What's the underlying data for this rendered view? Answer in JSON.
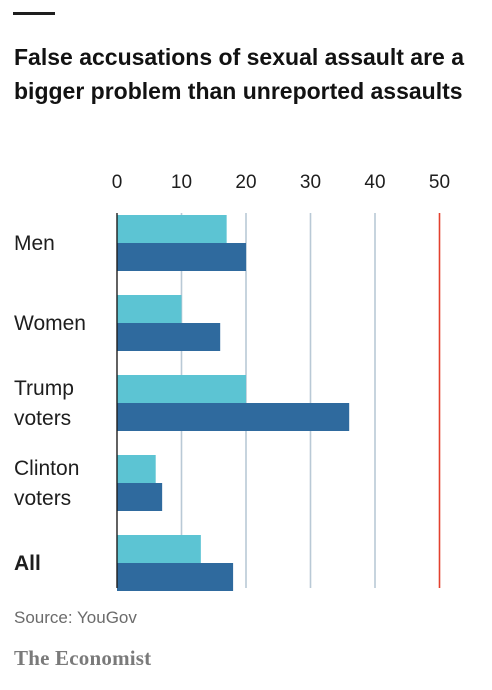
{
  "title": "False accusations of sexual assault are a bigger problem than unreported assaults",
  "source": "Source: YouGov",
  "brand": "The Economist",
  "colors": {
    "series_light": "#5cc4d3",
    "series_dark": "#2f6a9e",
    "grid": "#b9c9d6",
    "highlight_line": "#e3402e",
    "text": "#1e1e1e"
  },
  "chart_data": {
    "type": "bar",
    "orientation": "horizontal",
    "categories": [
      {
        "lines": [
          "Men"
        ],
        "bold": false
      },
      {
        "lines": [
          "Women"
        ],
        "bold": false
      },
      {
        "lines": [
          "Trump",
          "voters"
        ],
        "bold": false
      },
      {
        "lines": [
          "Clinton",
          "voters"
        ],
        "bold": false
      },
      {
        "lines": [
          "All"
        ],
        "bold": true
      }
    ],
    "series": [
      {
        "values": [
          17,
          10,
          20,
          6,
          13
        ]
      },
      {
        "values": [
          20,
          16,
          36,
          7,
          18
        ]
      }
    ],
    "xlim": [
      0,
      50
    ],
    "xticks": [
      "0",
      "10",
      "20",
      "30",
      "40",
      "50"
    ],
    "highlight_tick": "50",
    "axis_position": "top",
    "grid": true
  }
}
